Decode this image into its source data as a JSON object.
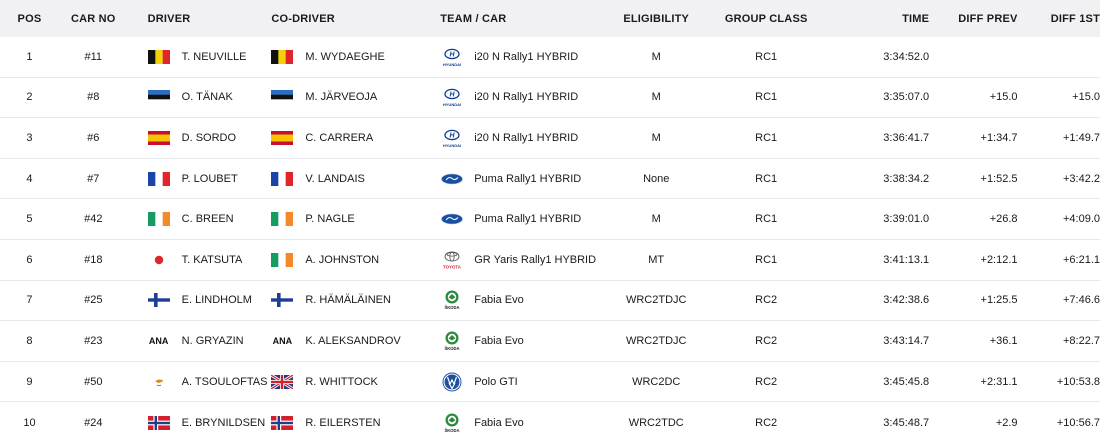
{
  "headers": {
    "pos": "POS",
    "car_no": "CAR NO",
    "driver": "DRIVER",
    "co_driver": "CO-DRIVER",
    "team": "TEAM / CAR",
    "eligibility": "ELIGIBILITY",
    "group_class": "GROUP CLASS",
    "time": "TIME",
    "diff_prev": "DIFF PREV",
    "diff_1st": "DIFF 1ST"
  },
  "rows": [
    {
      "pos": "1",
      "car": "#11",
      "driver": "T. NEUVILLE",
      "driver_flag": "belgium",
      "codriver": "M. WYDAEGHE",
      "codriver_flag": "belgium",
      "logo": "hyundai-logo",
      "team": "i20 N Rally1 HYBRID",
      "elig": "M",
      "grp": "RC1",
      "time": "3:34:52.0",
      "dprev": "",
      "d1st": ""
    },
    {
      "pos": "2",
      "car": "#8",
      "driver": "O. TÄNAK",
      "driver_flag": "estonia",
      "codriver": "M. JÄRVEOJA",
      "codriver_flag": "estonia",
      "logo": "hyundai-logo",
      "team": "i20 N Rally1 HYBRID",
      "elig": "M",
      "grp": "RC1",
      "time": "3:35:07.0",
      "dprev": "+15.0",
      "d1st": "+15.0"
    },
    {
      "pos": "3",
      "car": "#6",
      "driver": "D. SORDO",
      "driver_flag": "spain",
      "codriver": "C. CARRERA",
      "codriver_flag": "spain",
      "logo": "hyundai-logo",
      "team": "i20 N Rally1 HYBRID",
      "elig": "M",
      "grp": "RC1",
      "time": "3:36:41.7",
      "dprev": "+1:34.7",
      "d1st": "+1:49.7"
    },
    {
      "pos": "4",
      "car": "#7",
      "driver": "P. LOUBET",
      "driver_flag": "france",
      "codriver": "V. LANDAIS",
      "codriver_flag": "france",
      "logo": "ford-logo",
      "team": "Puma Rally1 HYBRID",
      "elig": "None",
      "grp": "RC1",
      "time": "3:38:34.2",
      "dprev": "+1:52.5",
      "d1st": "+3:42.2"
    },
    {
      "pos": "5",
      "car": "#42",
      "driver": "C. BREEN",
      "driver_flag": "ireland",
      "codriver": "P. NAGLE",
      "codriver_flag": "ireland",
      "logo": "ford-logo",
      "team": "Puma Rally1 HYBRID",
      "elig": "M",
      "grp": "RC1",
      "time": "3:39:01.0",
      "dprev": "+26.8",
      "d1st": "+4:09.0"
    },
    {
      "pos": "6",
      "car": "#18",
      "driver": "T. KATSUTA",
      "driver_flag": "japan",
      "codriver": "A. JOHNSTON",
      "codriver_flag": "ireland",
      "logo": "toyota-logo",
      "team": "GR Yaris Rally1 HYBRID",
      "elig": "MT",
      "grp": "RC1",
      "time": "3:41:13.1",
      "dprev": "+2:12.1",
      "d1st": "+6:21.1"
    },
    {
      "pos": "7",
      "car": "#25",
      "driver": "E. LINDHOLM",
      "driver_flag": "finland",
      "codriver": "R. HÄMÄLÄINEN",
      "codriver_flag": "finland",
      "logo": "skoda-logo",
      "team": "Fabia Evo",
      "elig": "WRC2TDJC",
      "grp": "RC2",
      "time": "3:42:38.6",
      "dprev": "+1:25.5",
      "d1st": "+7:46.6"
    },
    {
      "pos": "8",
      "car": "#23",
      "driver": "N. GRYAZIN",
      "driver_flag": "ana",
      "codriver": "K. ALEKSANDROV",
      "codriver_flag": "ana",
      "logo": "skoda-logo",
      "team": "Fabia Evo",
      "elig": "WRC2TDJC",
      "grp": "RC2",
      "time": "3:43:14.7",
      "dprev": "+36.1",
      "d1st": "+8:22.7"
    },
    {
      "pos": "9",
      "car": "#50",
      "driver": "A. TSOULOFTAS",
      "driver_flag": "cyprus",
      "codriver": "R. WHITTOCK",
      "codriver_flag": "uk",
      "logo": "vw-logo",
      "team": "Polo GTI",
      "elig": "WRC2DC",
      "grp": "RC2",
      "time": "3:45:45.8",
      "dprev": "+2:31.1",
      "d1st": "+10:53.8"
    },
    {
      "pos": "10",
      "car": "#24",
      "driver": "E. BRYNILDSEN",
      "driver_flag": "norway",
      "codriver": "R. EILERSTEN",
      "codriver_flag": "norway",
      "logo": "skoda-logo",
      "team": "Fabia Evo",
      "elig": "WRC2TDC",
      "grp": "RC2",
      "time": "3:45:48.7",
      "dprev": "+2.9",
      "d1st": "+10:56.7"
    }
  ],
  "ana_label": "ANA",
  "logo_text": {
    "hyundai": "HYUNDAI",
    "toyota": "TOYOTA",
    "skoda": "ŠKODA"
  },
  "colors": {
    "header_bg": "#f1f1f3",
    "row_border": "#e8e8ea"
  }
}
